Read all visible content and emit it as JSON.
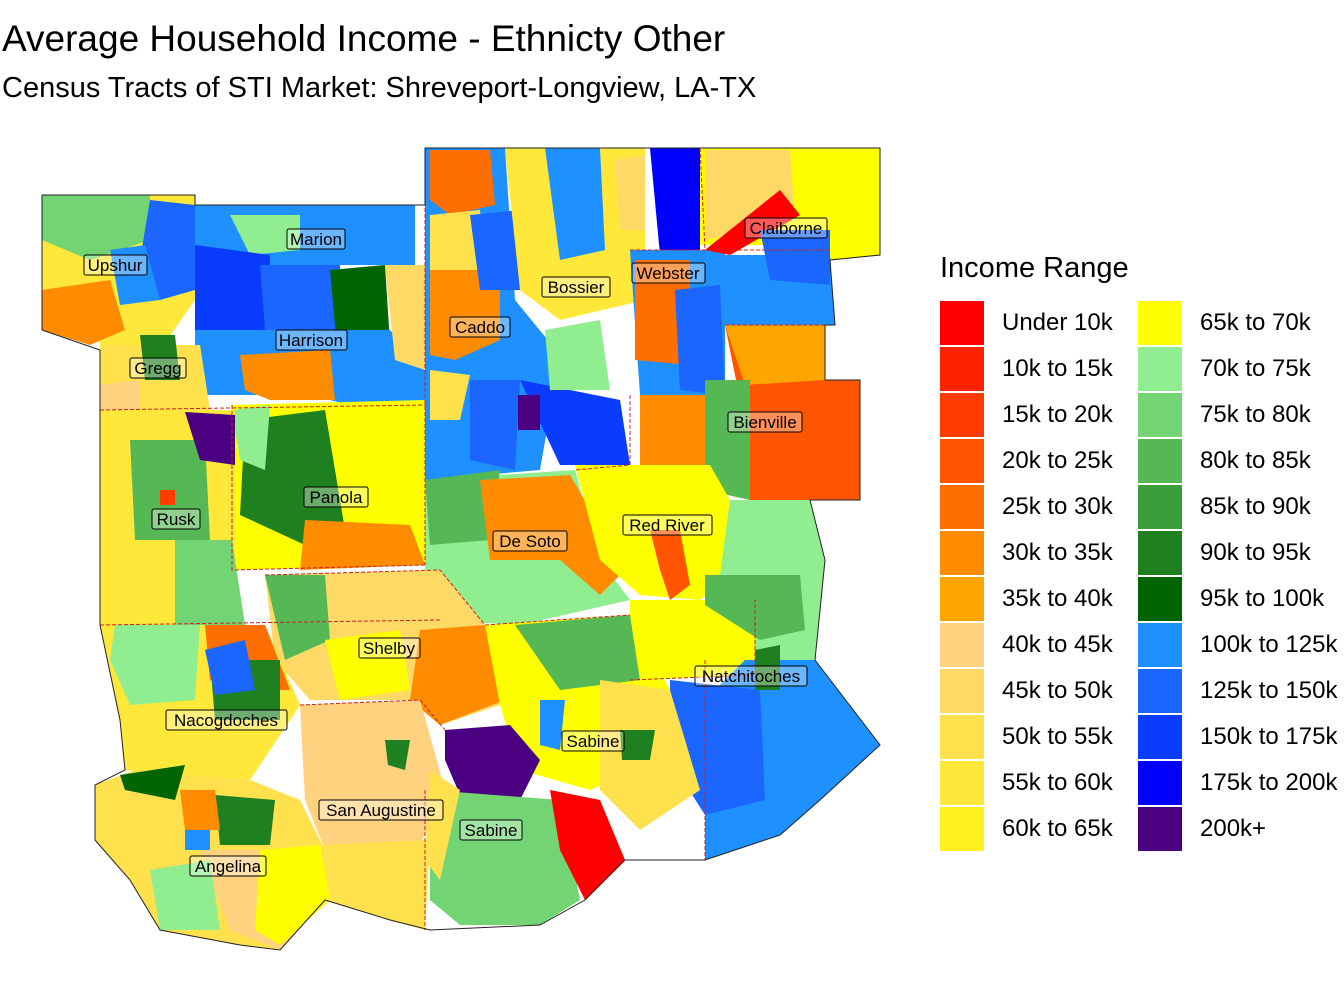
{
  "title": "Average Household Income - Ethnicty Other",
  "subtitle": "Census Tracts of STI Market: Shreveport-Longview, LA-TX",
  "legend": {
    "title": "Income Range",
    "items": [
      {
        "label": "Under 10k",
        "color": "#ff0000"
      },
      {
        "label": "10k to 15k",
        "color": "#ff2200"
      },
      {
        "label": "15k to 20k",
        "color": "#ff3c00"
      },
      {
        "label": "20k to 25k",
        "color": "#ff5500"
      },
      {
        "label": "25k to 30k",
        "color": "#ff6e00"
      },
      {
        "label": "30k to 35k",
        "color": "#ff8c00"
      },
      {
        "label": "35k to 40k",
        "color": "#ffa500"
      },
      {
        "label": "40k to 45k",
        "color": "#ffd27f"
      },
      {
        "label": "45k to 50k",
        "color": "#ffd966"
      },
      {
        "label": "50k to 55k",
        "color": "#ffe14d"
      },
      {
        "label": "55k to 60k",
        "color": "#ffe83a"
      },
      {
        "label": "60k to 65k",
        "color": "#fff01e"
      },
      {
        "label": "65k to 70k",
        "color": "#ffff00"
      },
      {
        "label": "70k to 75k",
        "color": "#90ee90"
      },
      {
        "label": "75k to 80k",
        "color": "#72d472"
      },
      {
        "label": "80k to 85k",
        "color": "#55b855"
      },
      {
        "label": "85k to 90k",
        "color": "#3a9e3a"
      },
      {
        "label": "90k to 95k",
        "color": "#1f801f"
      },
      {
        "label": "95k to 100k",
        "color": "#006400"
      },
      {
        "label": "100k to 125k",
        "color": "#1e90ff"
      },
      {
        "label": "125k to 150k",
        "color": "#1a66ff"
      },
      {
        "label": "150k to 175k",
        "color": "#0a3cff"
      },
      {
        "label": "175k to 200k",
        "color": "#0000ff"
      },
      {
        "label": "200k+",
        "color": "#4b0082"
      }
    ]
  },
  "parishes": [
    "Upshur",
    "Marion",
    "Harrison",
    "Gregg",
    "Caddo",
    "Bossier",
    "Webster",
    "Claiborne",
    "Bienville",
    "Panola",
    "Rusk",
    "De Soto",
    "Red River",
    "Shelby",
    "Nacogdoches",
    "Natchitoches",
    "Sabine",
    "San Augustine",
    "Sabine",
    "Angelina"
  ]
}
